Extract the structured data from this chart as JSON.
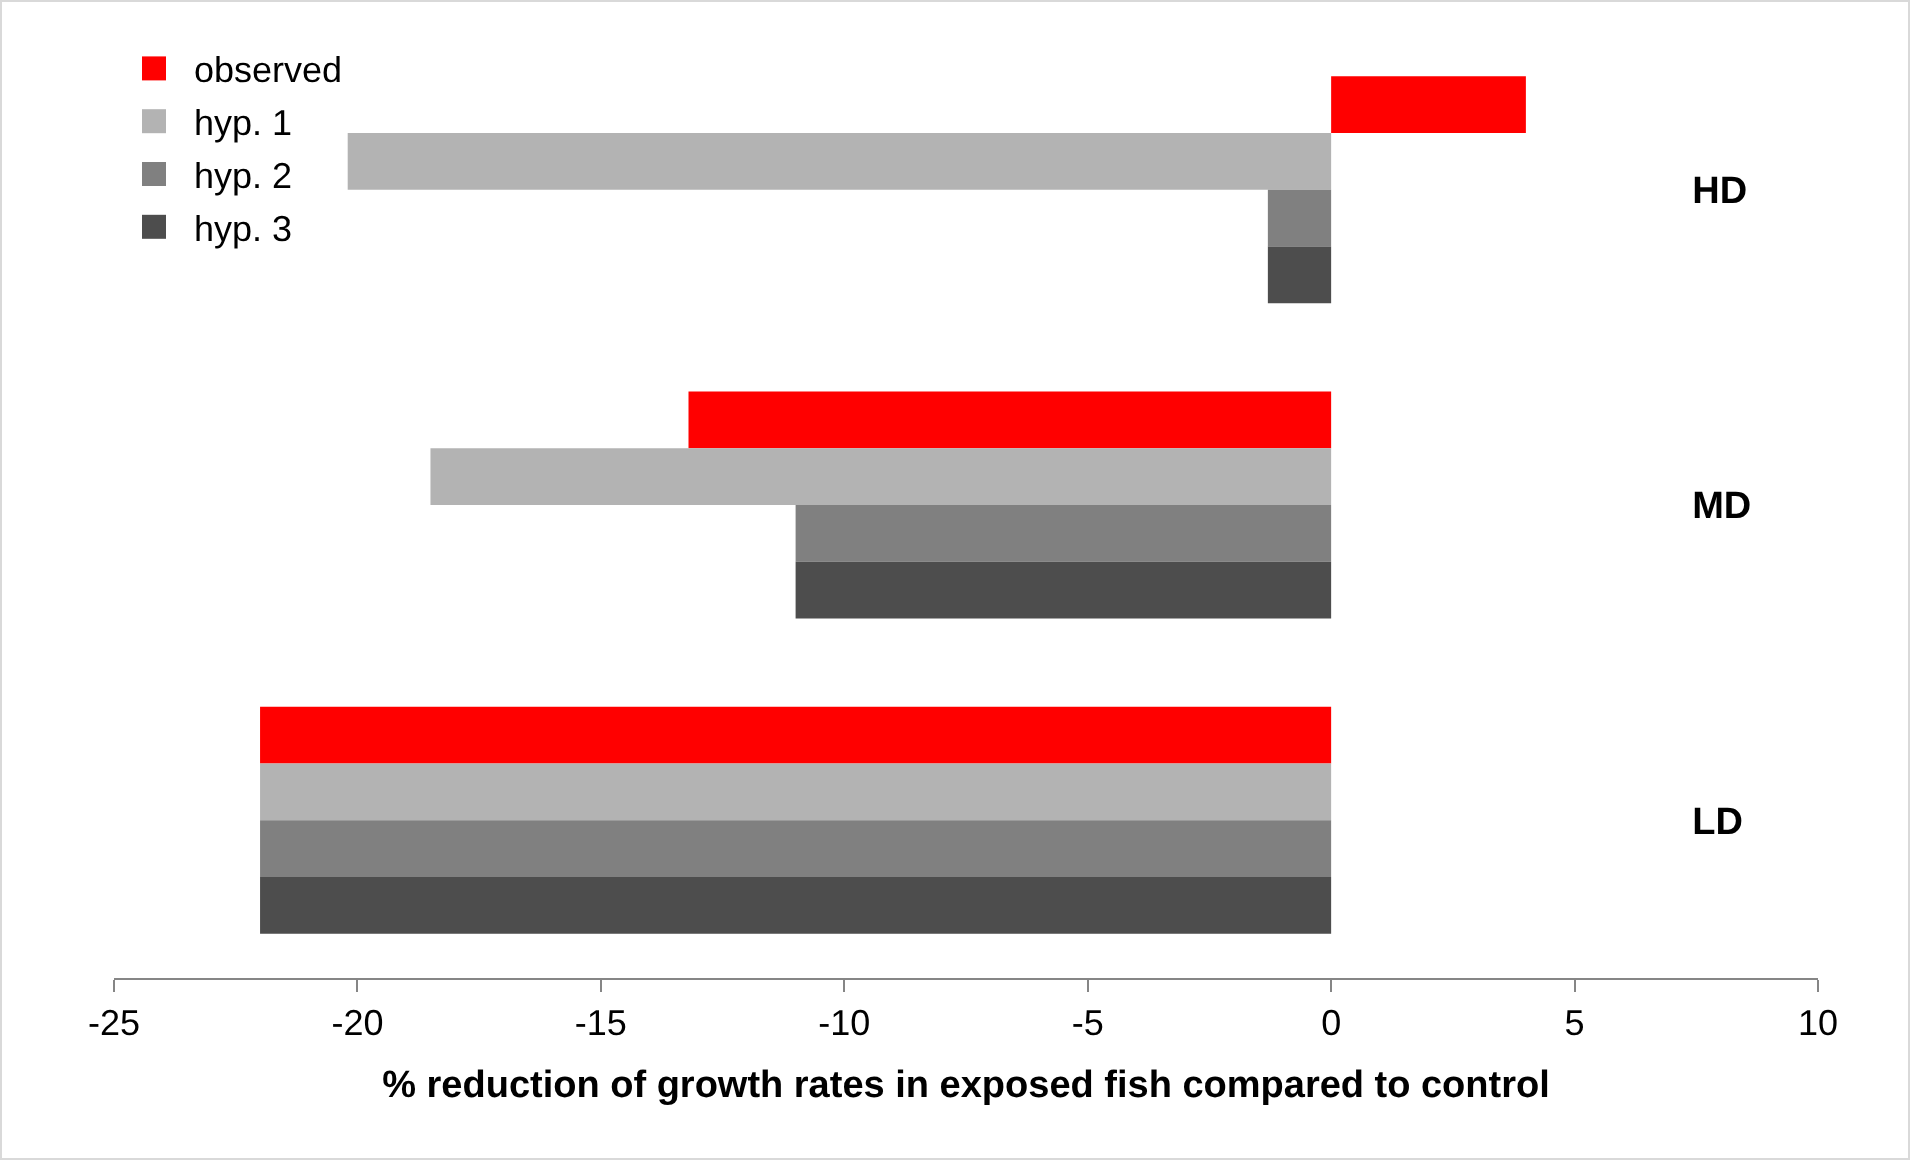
{
  "chart_data": {
    "type": "bar",
    "orientation": "horizontal",
    "xlabel": "% reduction of growth rates in exposed fish compared to control",
    "categories": [
      "HD",
      "MD",
      "LD"
    ],
    "series": [
      {
        "name": "observed",
        "color": "#ff0000",
        "values": [
          4.0,
          -13.2,
          -22
        ]
      },
      {
        "name": "hyp. 1",
        "color": "#b3b3b3",
        "values": [
          -20.2,
          -18.5,
          -22
        ]
      },
      {
        "name": "hyp. 2",
        "color": "#808080",
        "values": [
          -1.3,
          -11,
          -22
        ]
      },
      {
        "name": "hyp. 3",
        "color": "#4d4d4d",
        "values": [
          -1.3,
          -11,
          -22
        ]
      }
    ],
    "xlim": [
      -25,
      10
    ],
    "xticks": [
      -25,
      -20,
      -15,
      -10,
      -5,
      0,
      5,
      10
    ],
    "grid": false,
    "legend": "top left"
  }
}
